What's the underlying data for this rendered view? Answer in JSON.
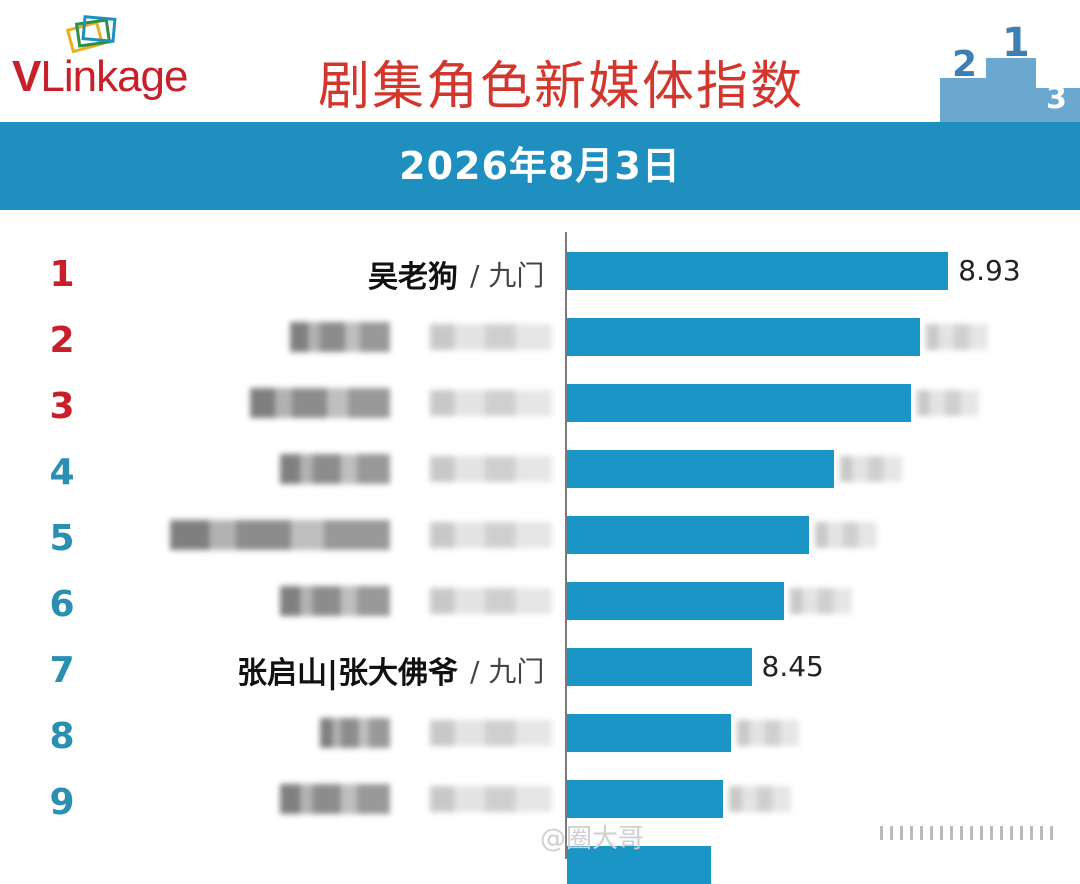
{
  "header": {
    "logo_v": "V",
    "logo_rest": "Linkage",
    "title": "剧集角色新媒体指数",
    "podium_numbers": [
      "2",
      "1",
      "3"
    ],
    "date": "2026年8月3日"
  },
  "chart_data": {
    "type": "bar",
    "orientation": "horizontal",
    "title": "剧集角色新媒体指数",
    "subtitle": "2026年8月3日",
    "ranks": [
      "1",
      "2",
      "3",
      "4",
      "5",
      "6",
      "7",
      "8",
      "9"
    ],
    "rows": [
      {
        "rank": "1",
        "name": "吴老狗",
        "show": "/ 九门",
        "value": 8.93,
        "value_label": "8.93",
        "rank_color": "#c8202a"
      },
      {
        "rank": "2",
        "name": "",
        "show": "",
        "value": 8.86,
        "value_label": "",
        "rank_color": "#c8202a"
      },
      {
        "rank": "3",
        "name": "",
        "show": "",
        "value": 8.84,
        "value_label": "",
        "rank_color": "#c8202a"
      },
      {
        "rank": "4",
        "name": "",
        "show": "",
        "value": 8.65,
        "value_label": "",
        "rank_color": "#2a8fb0"
      },
      {
        "rank": "5",
        "name": "",
        "show": "",
        "value": 8.59,
        "value_label": "",
        "rank_color": "#2a8fb0"
      },
      {
        "rank": "6",
        "name": "",
        "show": "",
        "value": 8.53,
        "value_label": "",
        "rank_color": "#2a8fb0"
      },
      {
        "rank": "7",
        "name": "张启山|张大佛爷",
        "show": "/ 九门",
        "value": 8.45,
        "value_label": "8.45",
        "rank_color": "#2a8fb0"
      },
      {
        "rank": "8",
        "name": "",
        "show": "",
        "value": 8.4,
        "value_label": "",
        "rank_color": "#2a8fb0"
      },
      {
        "rank": "9",
        "name": "",
        "show": "",
        "value": 8.38,
        "value_label": "",
        "rank_color": "#2a8fb0"
      },
      {
        "rank": "",
        "name": "",
        "show": "",
        "value": 8.35,
        "value_label": "",
        "rank_color": "#2a8fb0"
      }
    ],
    "bar_color": "#1b95c6",
    "xlim": [
      8.0,
      9.0
    ],
    "grid": false
  },
  "watermark": "@圈大哥"
}
